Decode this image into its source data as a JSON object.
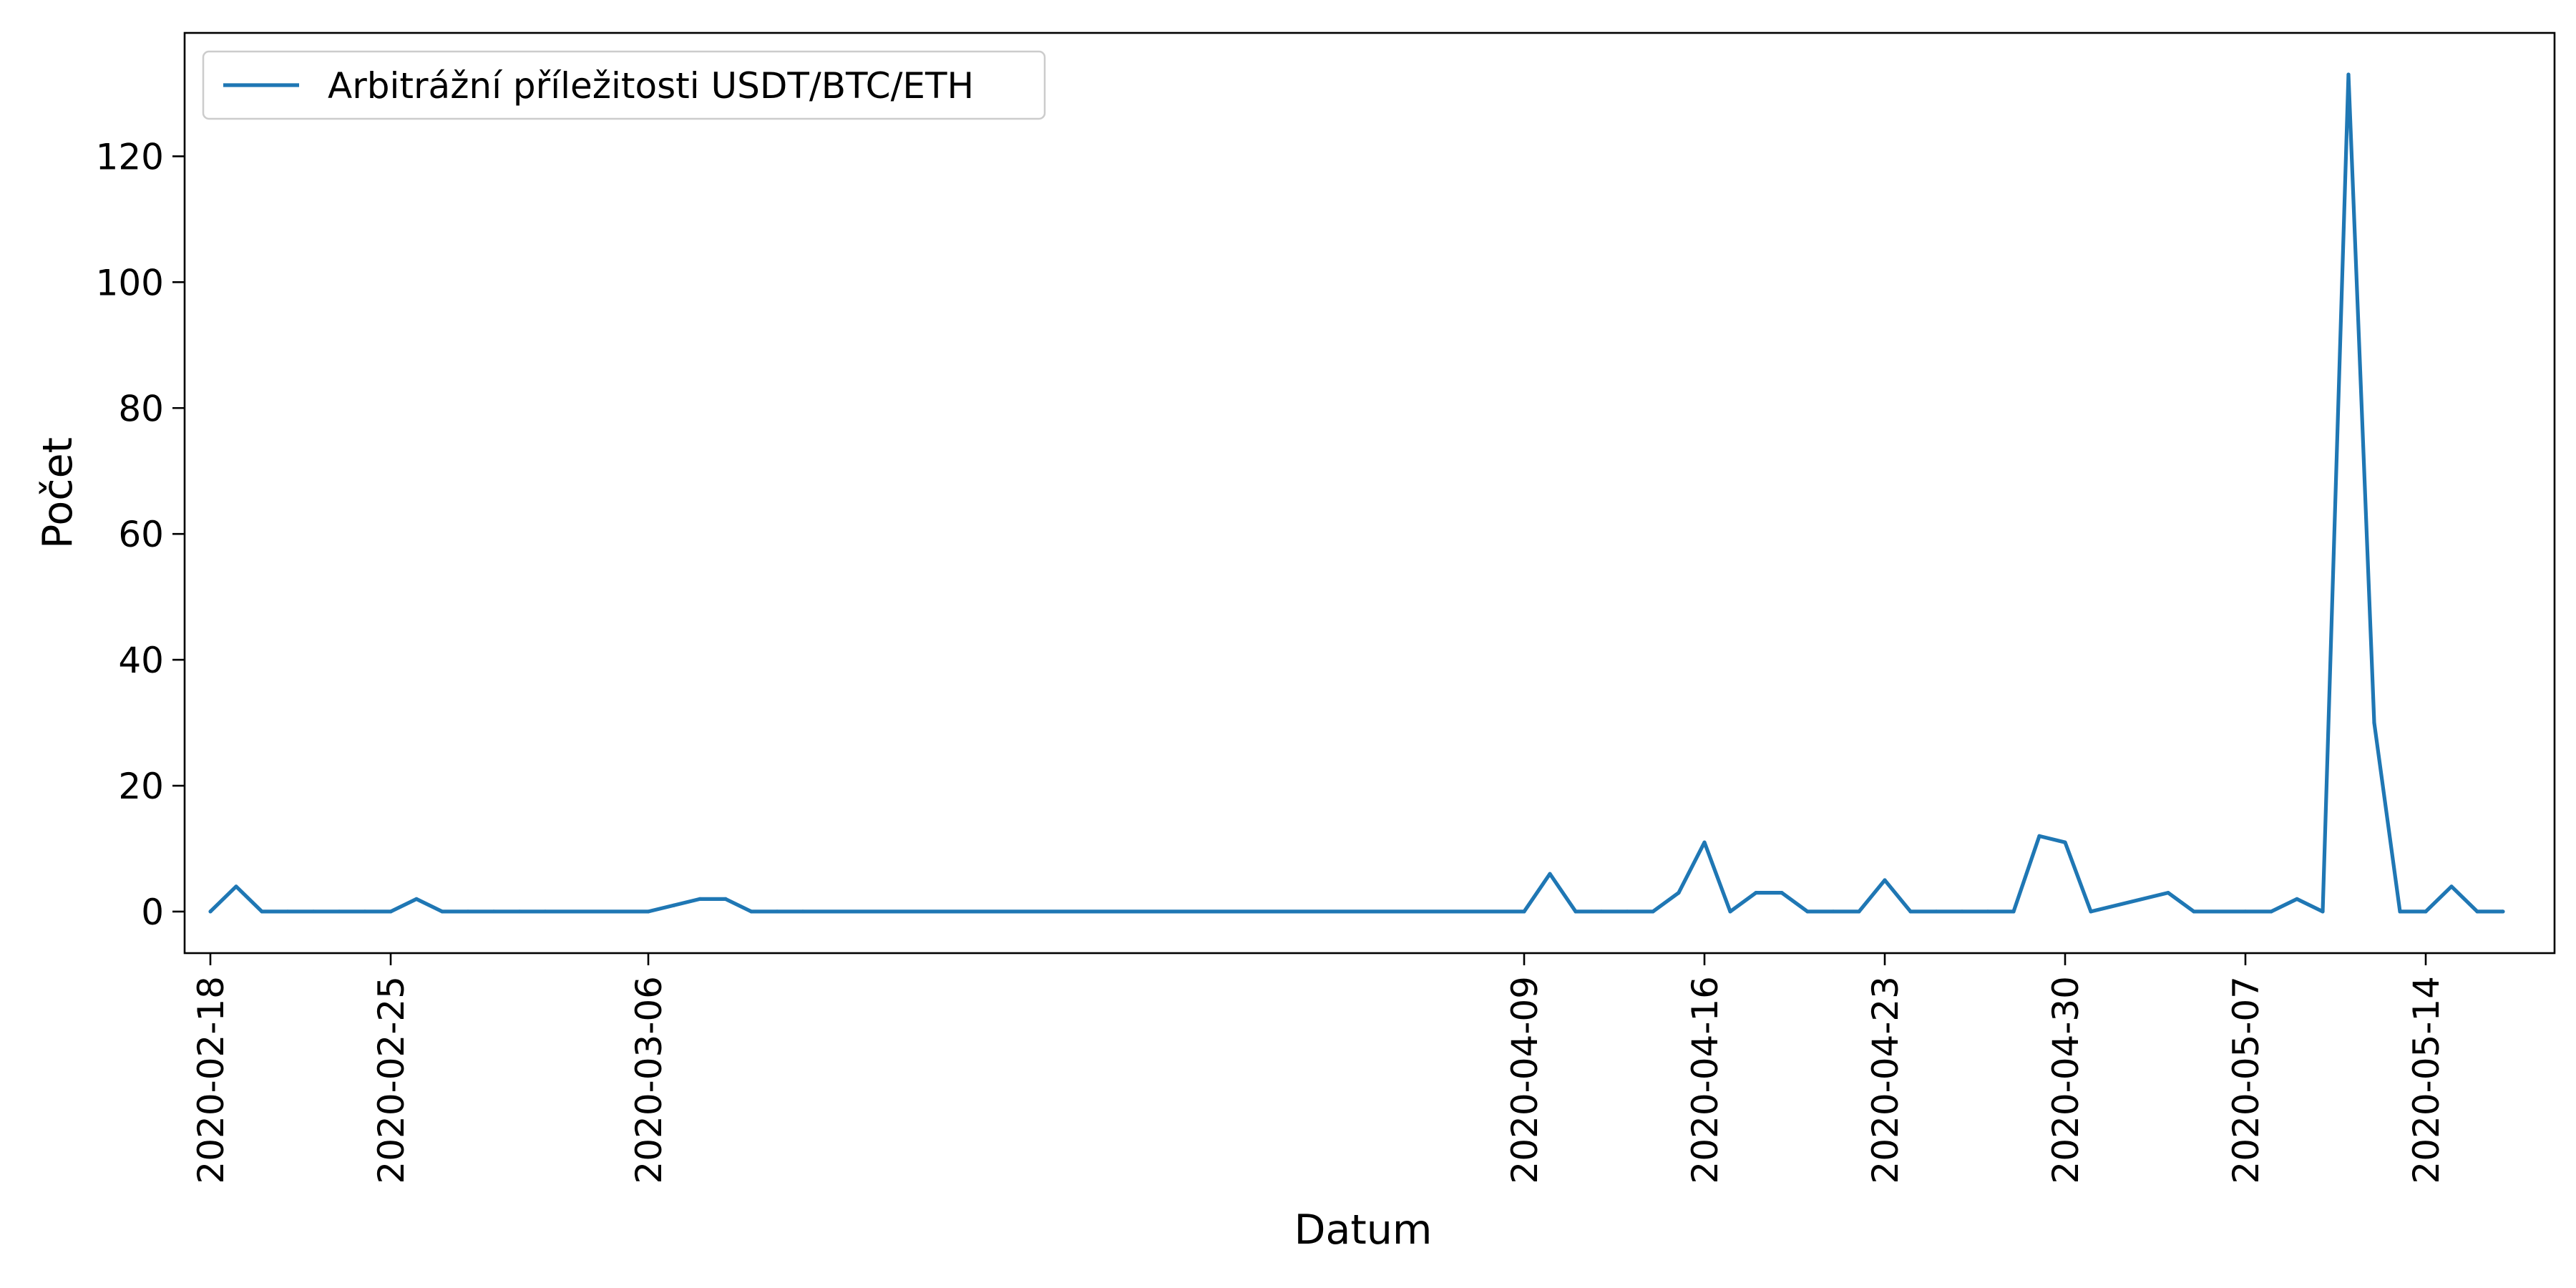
{
  "chart_data": {
    "type": "line",
    "title": "",
    "xlabel": "Datum",
    "ylabel": "Počet",
    "xlim": [
      "2020-02-17",
      "2020-05-19"
    ],
    "ylim": [
      -6.6,
      139.6
    ],
    "grid": false,
    "legend_position": "top-left",
    "xtick_labels": [
      "2020-02-18",
      "2020-02-25",
      "2020-03-06",
      "2020-04-09",
      "2020-04-16",
      "2020-04-23",
      "2020-04-30",
      "2020-05-07",
      "2020-05-14"
    ],
    "ytick_values": [
      0,
      20,
      40,
      60,
      80,
      100,
      120
    ],
    "ytick_labels": [
      "0",
      "20",
      "40",
      "60",
      "80",
      "100",
      "120"
    ],
    "categories": [
      "2020-02-18",
      "2020-02-19",
      "2020-02-20",
      "2020-02-21",
      "2020-02-22",
      "2020-02-23",
      "2020-02-24",
      "2020-02-25",
      "2020-02-26",
      "2020-02-27",
      "2020-02-28",
      "2020-02-29",
      "2020-03-01",
      "2020-03-02",
      "2020-03-06",
      "2020-03-07",
      "2020-03-08",
      "2020-03-09",
      "2020-03-10",
      "2020-03-11",
      "2020-03-12",
      "2020-04-09",
      "2020-04-10",
      "2020-04-11",
      "2020-04-12",
      "2020-04-13",
      "2020-04-14",
      "2020-04-15",
      "2020-04-16",
      "2020-04-17",
      "2020-04-18",
      "2020-04-19",
      "2020-04-20",
      "2020-04-21",
      "2020-04-22",
      "2020-04-23",
      "2020-04-24",
      "2020-04-25",
      "2020-04-26",
      "2020-04-27",
      "2020-04-28",
      "2020-04-29",
      "2020-04-30",
      "2020-05-01",
      "2020-05-04",
      "2020-05-05",
      "2020-05-07",
      "2020-05-08",
      "2020-05-09",
      "2020-05-10",
      "2020-05-11",
      "2020-05-12",
      "2020-05-13",
      "2020-05-14",
      "2020-05-15",
      "2020-05-16",
      "2020-05-17"
    ],
    "series": [
      {
        "name": "Arbitrážní příležitosti USDT/BTC/ETH",
        "color": "#1f77b4",
        "values": [
          0,
          4,
          0,
          0,
          0,
          0,
          0,
          0,
          2,
          0,
          0,
          0,
          0,
          0,
          0,
          1,
          2,
          2,
          0,
          0,
          0,
          0,
          6,
          0,
          0,
          0,
          0,
          3,
          11,
          0,
          3,
          3,
          0,
          0,
          0,
          5,
          0,
          0,
          0,
          0,
          0,
          12,
          11,
          0,
          3,
          0,
          0,
          0,
          2,
          0,
          133,
          30,
          0,
          0,
          4,
          0,
          0
        ]
      }
    ]
  }
}
